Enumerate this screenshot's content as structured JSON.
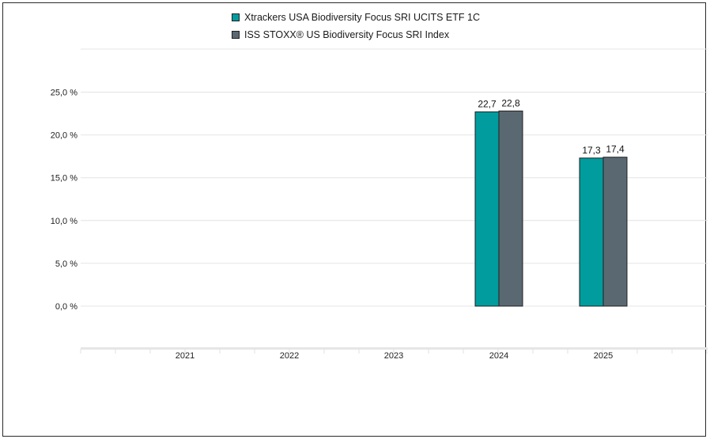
{
  "chart_data": {
    "type": "bar",
    "categories": [
      "2021",
      "2022",
      "2023",
      "2024",
      "2025"
    ],
    "series": [
      {
        "name": "Xtrackers USA Biodiversity Focus SRI UCITS ETF 1C",
        "color": "#009c9e",
        "values": [
          null,
          null,
          null,
          22.7,
          17.3
        ],
        "labels": [
          "",
          "",
          "",
          "22,7",
          "17,3"
        ]
      },
      {
        "name": "ISS STOXX® US Biodiversity Focus SRI Index",
        "color": "#5a6872",
        "values": [
          null,
          null,
          null,
          22.8,
          17.4
        ],
        "labels": [
          "",
          "",
          "",
          "22,8",
          "17,4"
        ]
      }
    ],
    "yticks": [
      25,
      20,
      15,
      10,
      5,
      0
    ],
    "ytick_labels": [
      "25,0 %",
      "20,0 %",
      "15,0 %",
      "10,0 %",
      "5,0 %",
      "0,0 %"
    ],
    "ylim": [
      -5,
      30
    ],
    "grid": true,
    "legend_position": "top-center",
    "title": "",
    "xlabel": "",
    "ylabel": ""
  }
}
